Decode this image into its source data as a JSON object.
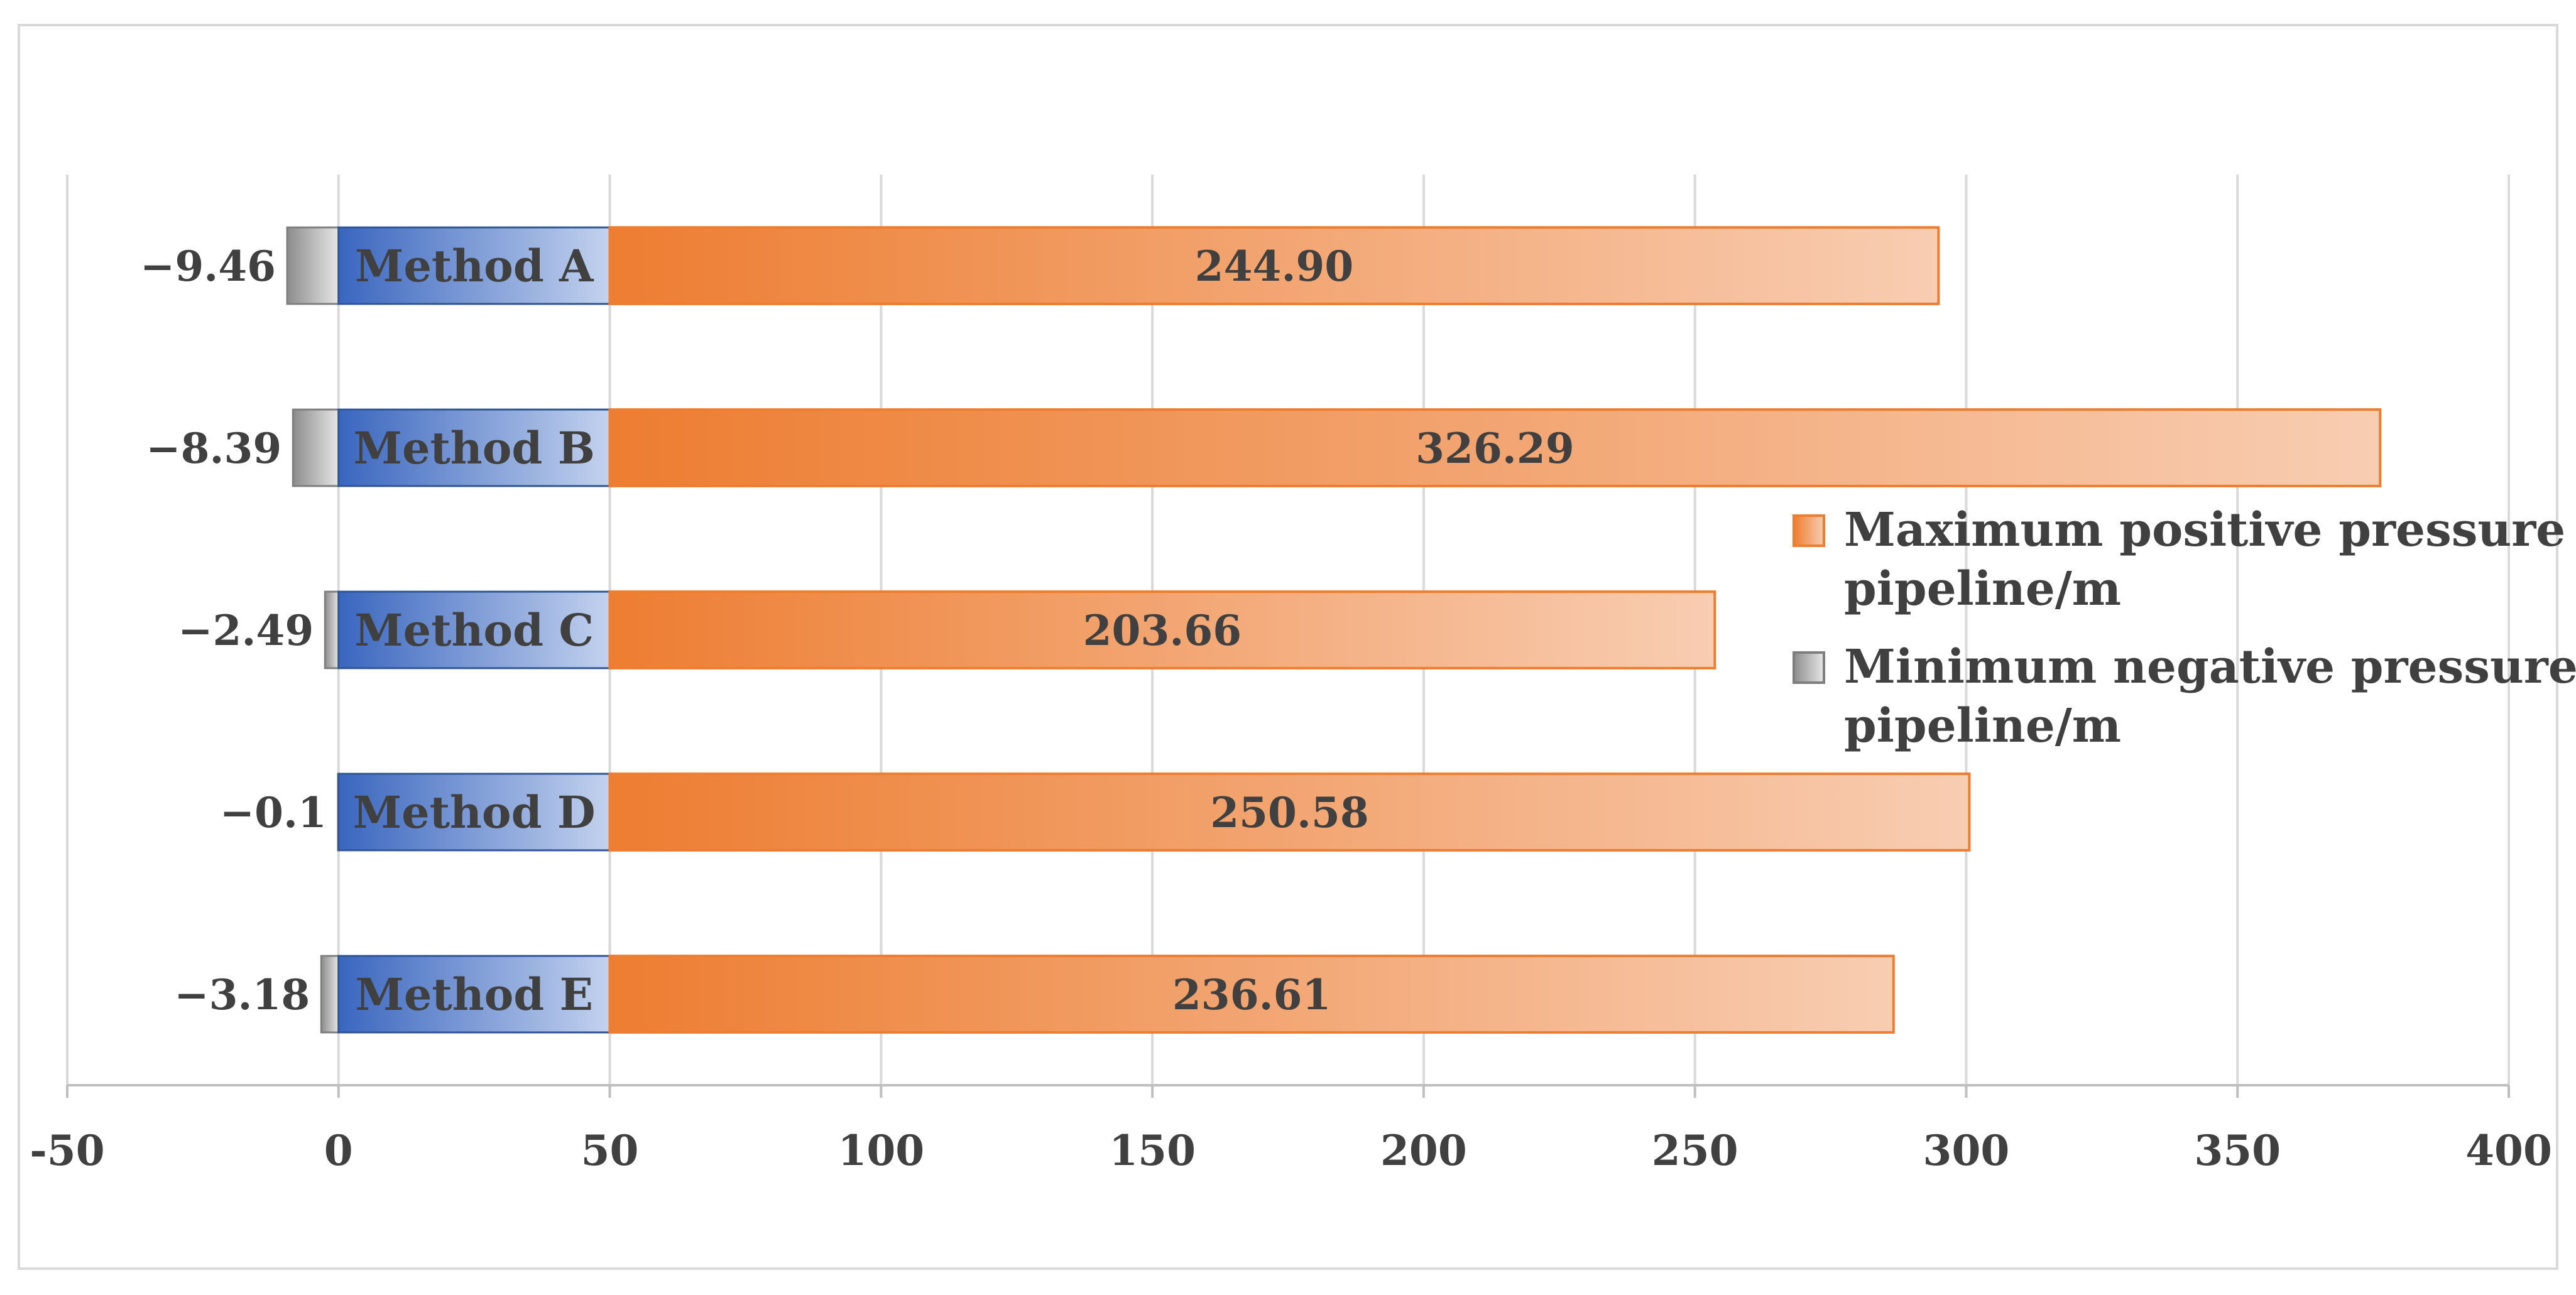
{
  "chart_data": {
    "type": "bar",
    "orientation": "horizontal",
    "stacked": true,
    "categories": [
      "Method A",
      "Method B",
      "Method C",
      "Method D",
      "Method E"
    ],
    "series": [
      {
        "name": "Minimum negative pressure of pipeline/m",
        "values": [
          -9.46,
          -8.39,
          -2.49,
          -0.1,
          -3.18
        ],
        "labels": [
          "−9.46",
          "−8.39",
          "−2.49",
          "−0.1",
          "−3.18"
        ],
        "color": "#a6a6a6"
      },
      {
        "name": "",
        "values": [
          50,
          50,
          50,
          50,
          50
        ],
        "color": "#4472c4"
      },
      {
        "name": "Maximum positive pressure of pipeline/m",
        "values": [
          244.9,
          326.29,
          203.66,
          250.58,
          236.61
        ],
        "labels": [
          "244.90",
          "326.29",
          "203.66",
          "250.58",
          "236.61"
        ],
        "color": "#ed7d31"
      }
    ],
    "xlim": [
      -50,
      400
    ],
    "xticks": [
      "-50",
      "0",
      "50",
      "100",
      "150",
      "200",
      "250",
      "300",
      "350",
      "400"
    ],
    "grid": "vertical",
    "legend": {
      "position": "right",
      "entries": [
        {
          "line1": "Maximum positive pressure of",
          "line2": "pipeline/m",
          "color": "#ed7d31"
        },
        {
          "line1": "Minimum negative pressure of",
          "line2": "pipeline/m",
          "color": "#a6a6a6"
        }
      ]
    }
  }
}
